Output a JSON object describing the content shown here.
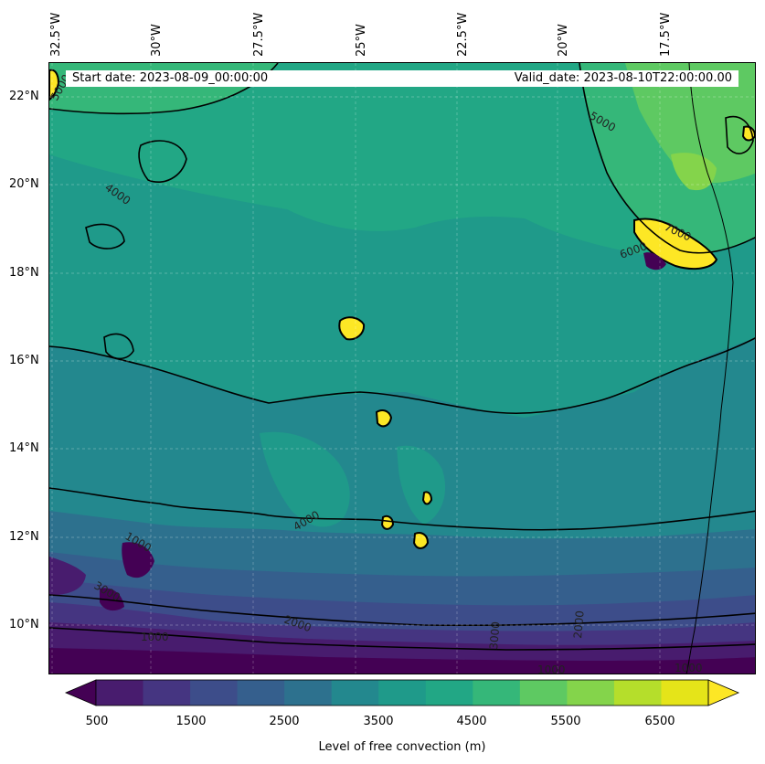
{
  "header": {
    "start_date": "Start date: 2023-08-09_00:00:00",
    "valid_date": "Valid_date: 2023-08-10T22:00:00.00"
  },
  "axes": {
    "longitude_labels": [
      "32.5°W",
      "30°W",
      "27.5°W",
      "25°W",
      "22.5°W",
      "20°W",
      "17.5°W"
    ],
    "latitude_labels": [
      "22°N",
      "20°N",
      "18°N",
      "16°N",
      "14°N",
      "12°N",
      "10°N"
    ]
  },
  "contour_labels": [
    "5000",
    "4000",
    "4000",
    "7000",
    "6000",
    "3000",
    "1000",
    "1000",
    "2000",
    "3000",
    "2000",
    "1000",
    "1000",
    "5000"
  ],
  "colorbar": {
    "ticks": [
      "500",
      "1500",
      "2500",
      "3500",
      "4500",
      "5500",
      "6500"
    ],
    "label": "Level of free convection (m)",
    "colors": [
      "#440154",
      "#481c6e",
      "#453581",
      "#3d4d8a",
      "#355f8d",
      "#2d718e",
      "#23888e",
      "#1f9a8a",
      "#22a785",
      "#35b779",
      "#5ec962",
      "#84d44b",
      "#b5de2b",
      "#e5e419",
      "#fde725"
    ]
  }
}
